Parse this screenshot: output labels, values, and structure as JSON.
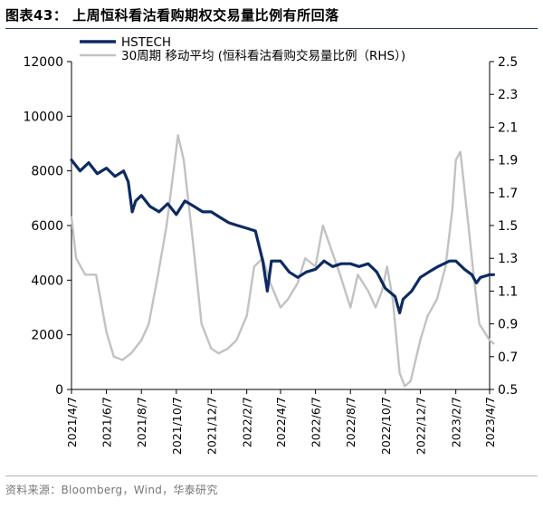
{
  "title": "图表43：  上周恒科看沽看购期权交易量比例有所回落",
  "source": "资料来源：Bloomberg，Wind，华泰研究",
  "colors": {
    "primary": "#0d2a63",
    "secondary": "#c2c2c2",
    "rule": "#1f3a68"
  },
  "chart_data": {
    "type": "line",
    "title": "",
    "xlabel": "",
    "ylabel": "",
    "ylabel_right": "",
    "x_ticks": [
      "2021/4/7",
      "2021/6/7",
      "2021/8/7",
      "2021/10/7",
      "2021/12/7",
      "2022/2/7",
      "2022/4/7",
      "2022/6/7",
      "2022/8/7",
      "2022/10/7",
      "2022/12/7",
      "2023/2/7",
      "2023/4/7"
    ],
    "ylim_left": [
      0,
      12000
    ],
    "yticks_left": [
      "0",
      "2000",
      "4000",
      "6000",
      "8000",
      "10000",
      "12000"
    ],
    "ylim_right": [
      0.5,
      2.5
    ],
    "yticks_right": [
      "0.5",
      "0.7",
      "0.9",
      "1.1",
      "1.3",
      "1.5",
      "1.7",
      "1.9",
      "2.1",
      "2.3",
      "2.5"
    ],
    "grid": false,
    "legend_position": "top-left",
    "series": [
      {
        "name": "HSTECH",
        "axis": "left",
        "x": [
          "2021/4/7",
          "2021/4/22",
          "2021/5/7",
          "2021/5/22",
          "2021/6/7",
          "2021/6/22",
          "2021/7/7",
          "2021/7/15",
          "2021/7/22",
          "2021/7/28",
          "2021/8/7",
          "2021/8/22",
          "2021/9/7",
          "2021/9/22",
          "2021/10/7",
          "2021/10/22",
          "2021/11/7",
          "2021/11/22",
          "2021/12/7",
          "2021/12/22",
          "2022/1/7",
          "2022/1/22",
          "2022/2/7",
          "2022/2/22",
          "2022/3/7",
          "2022/3/15",
          "2022/3/22",
          "2022/4/7",
          "2022/4/22",
          "2022/5/7",
          "2022/5/22",
          "2022/6/7",
          "2022/6/22",
          "2022/7/7",
          "2022/7/22",
          "2022/8/7",
          "2022/8/22",
          "2022/9/7",
          "2022/9/22",
          "2022/10/7",
          "2022/10/24",
          "2022/11/1",
          "2022/11/7",
          "2022/11/22",
          "2022/12/7",
          "2022/12/22",
          "2023/1/7",
          "2023/1/27",
          "2023/2/7",
          "2023/2/22",
          "2023/3/7",
          "2023/3/15",
          "2023/3/22",
          "2023/4/7",
          "2023/4/14"
        ],
        "values": [
          8400,
          8000,
          8300,
          7900,
          8100,
          7800,
          8000,
          7600,
          6500,
          6900,
          7100,
          6700,
          6500,
          6800,
          6400,
          6900,
          6700,
          6500,
          6500,
          6300,
          6100,
          6000,
          5900,
          5800,
          4700,
          3600,
          4700,
          4700,
          4300,
          4100,
          4300,
          4400,
          4700,
          4500,
          4600,
          4600,
          4500,
          4600,
          4300,
          3700,
          3400,
          2800,
          3300,
          3600,
          4100,
          4300,
          4500,
          4700,
          4700,
          4400,
          4200,
          3900,
          4100,
          4200,
          4200
        ]
      },
      {
        "name": "30周期 移动平均 (恒科看沽看购交易量比例（RHS）)",
        "axis": "right",
        "x": [
          "2021/4/7",
          "2021/4/15",
          "2021/5/1",
          "2021/5/20",
          "2021/6/7",
          "2021/6/20",
          "2021/7/5",
          "2021/7/20",
          "2021/8/7",
          "2021/8/20",
          "2021/9/5",
          "2021/9/20",
          "2021/10/1",
          "2021/10/10",
          "2021/10/20",
          "2021/11/5",
          "2021/11/20",
          "2021/12/7",
          "2021/12/20",
          "2022/1/5",
          "2022/1/20",
          "2022/2/7",
          "2022/2/20",
          "2022/3/7",
          "2022/3/20",
          "2022/4/7",
          "2022/4/20",
          "2022/5/7",
          "2022/5/20",
          "2022/6/7",
          "2022/6/20",
          "2022/7/5",
          "2022/7/20",
          "2022/8/7",
          "2022/8/20",
          "2022/9/7",
          "2022/9/20",
          "2022/10/1",
          "2022/10/10",
          "2022/10/20",
          "2022/11/1",
          "2022/11/10",
          "2022/11/20",
          "2022/12/7",
          "2022/12/20",
          "2023/1/5",
          "2023/1/20",
          "2023/2/1",
          "2023/2/7",
          "2023/2/15",
          "2023/3/1",
          "2023/3/10",
          "2023/3/20",
          "2023/4/7",
          "2023/4/14"
        ],
        "values": [
          1.55,
          1.3,
          1.2,
          1.2,
          0.85,
          0.7,
          0.68,
          0.72,
          0.8,
          0.9,
          1.2,
          1.5,
          1.8,
          2.05,
          1.9,
          1.4,
          0.9,
          0.75,
          0.72,
          0.75,
          0.8,
          0.95,
          1.25,
          1.3,
          1.15,
          1.0,
          1.05,
          1.15,
          1.3,
          1.25,
          1.5,
          1.35,
          1.2,
          1.0,
          1.2,
          1.1,
          1.0,
          1.1,
          1.25,
          1.05,
          0.6,
          0.52,
          0.55,
          0.8,
          0.95,
          1.05,
          1.25,
          1.6,
          1.9,
          1.95,
          1.5,
          1.2,
          0.9,
          0.8,
          0.78
        ]
      }
    ]
  }
}
